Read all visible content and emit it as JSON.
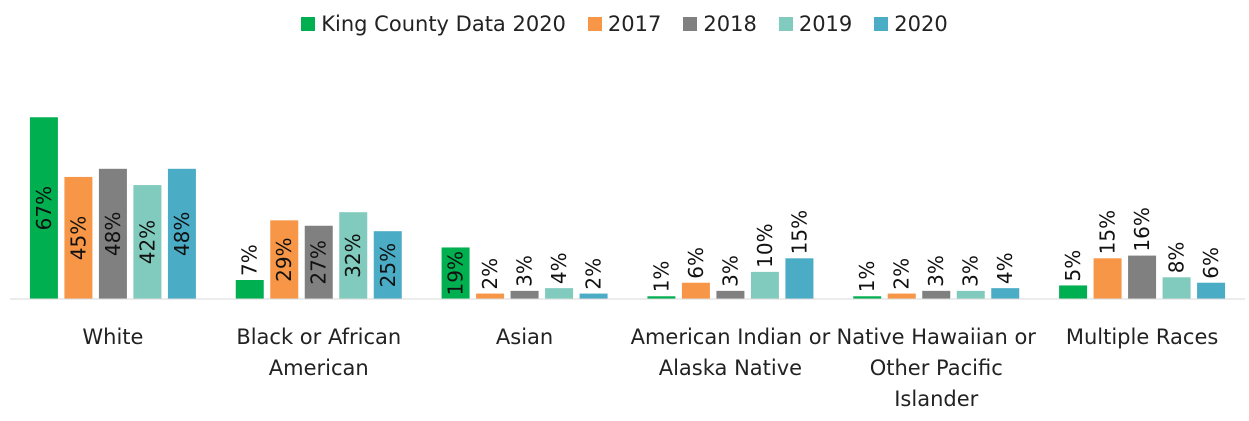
{
  "chart_data": {
    "type": "bar",
    "categories": [
      "White",
      "Black or African American",
      "Asian",
      "American Indian or Alaska Native",
      "Native Hawaiian or Other Pacific Islander",
      "Multiple Races"
    ],
    "ylim": [
      0,
      80
    ],
    "series": [
      {
        "name": "King County Data 2020",
        "color": "#00b050",
        "values": [
          67,
          7,
          19,
          1,
          1,
          5
        ],
        "value_labels": [
          "67%",
          "7%",
          "19%",
          "1%",
          "1%",
          "5%"
        ]
      },
      {
        "name": "2017",
        "color": "#f79646",
        "values": [
          45,
          29,
          2,
          6,
          2,
          15
        ],
        "value_labels": [
          "45%",
          "29%",
          "2%",
          "6%",
          "2%",
          "15%"
        ]
      },
      {
        "name": "2018",
        "color": "#808080",
        "values": [
          48,
          27,
          3,
          3,
          3,
          16
        ],
        "value_labels": [
          "48%",
          "27%",
          "3%",
          "3%",
          "3%",
          "16%"
        ]
      },
      {
        "name": "2019",
        "color": "#80cbbd",
        "values": [
          42,
          32,
          4,
          10,
          3,
          8
        ],
        "value_labels": [
          "42%",
          "32%",
          "4%",
          "10%",
          "3%",
          "8%"
        ]
      },
      {
        "name": "2020",
        "color": "#4bacc6",
        "values": [
          48,
          25,
          2,
          15,
          4,
          6
        ],
        "value_labels": [
          "48%",
          "25%",
          "2%",
          "15%",
          "4%",
          "6%"
        ]
      }
    ],
    "legend": "top"
  }
}
